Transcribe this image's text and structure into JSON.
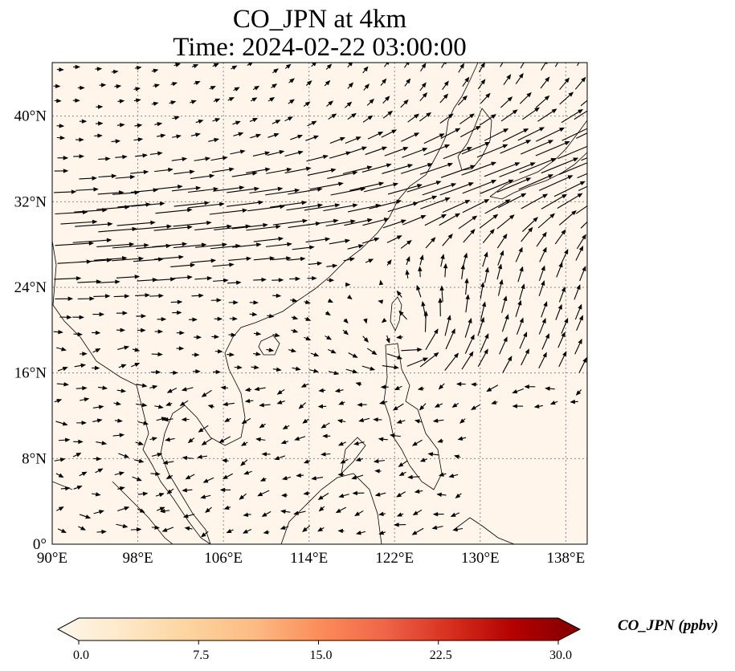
{
  "title": {
    "line1": "CO_JPN at 4km",
    "line2": "Time: 2024-02-22 03:00:00"
  },
  "map": {
    "lon_range": [
      90,
      140
    ],
    "lat_range": [
      0,
      45
    ],
    "x_ticks": [
      "90°E",
      "98°E",
      "106°E",
      "114°E",
      "122°E",
      "130°E",
      "138°E"
    ],
    "y_ticks": [
      "0°",
      "8°N",
      "16°N",
      "24°N",
      "32°N",
      "40°N"
    ],
    "background_color": "#fff5ea",
    "coastline_color": "#000000",
    "gridline_color": "#888888",
    "arrow_color": "#000000"
  },
  "colorbar": {
    "label": "CO_JPN (ppbv)",
    "ticks": [
      "0.0",
      "7.5",
      "15.0",
      "22.5",
      "30.0"
    ],
    "min": 0,
    "max": 30,
    "colormap": [
      "#fff7ec",
      "#fee8c8",
      "#fdd49e",
      "#fdbb84",
      "#fc8d59",
      "#ef6548",
      "#d7301f",
      "#b30000",
      "#7f0000"
    ]
  }
}
